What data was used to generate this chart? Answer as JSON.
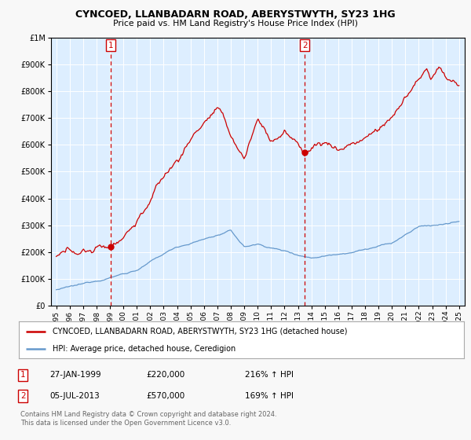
{
  "title": "CYNCOED, LLANBADARN ROAD, ABERYSTWYTH, SY23 1HG",
  "subtitle": "Price paid vs. HM Land Registry's House Price Index (HPI)",
  "legend_line1": "CYNCOED, LLANBADARN ROAD, ABERYSTWYTH, SY23 1HG (detached house)",
  "legend_line2": "HPI: Average price, detached house, Ceredigion",
  "annotation1_date": "27-JAN-1999",
  "annotation1_price": "£220,000",
  "annotation1_hpi": "216% ↑ HPI",
  "annotation2_date": "05-JUL-2013",
  "annotation2_price": "£570,000",
  "annotation2_hpi": "169% ↑ HPI",
  "footer1": "Contains HM Land Registry data © Crown copyright and database right 2024.",
  "footer2": "This data is licensed under the Open Government Licence v3.0.",
  "red_color": "#cc0000",
  "blue_color": "#6699cc",
  "bg_color": "#ddeeff",
  "plot_bg": "#f8f8f8",
  "grid_color": "#ffffff",
  "sale1_year": 1999.07,
  "sale1_price": 220000,
  "sale2_year": 2013.51,
  "sale2_price": 570000,
  "ylim_max": 1000000,
  "xlim_start": 1994.6,
  "xlim_end": 2025.4
}
